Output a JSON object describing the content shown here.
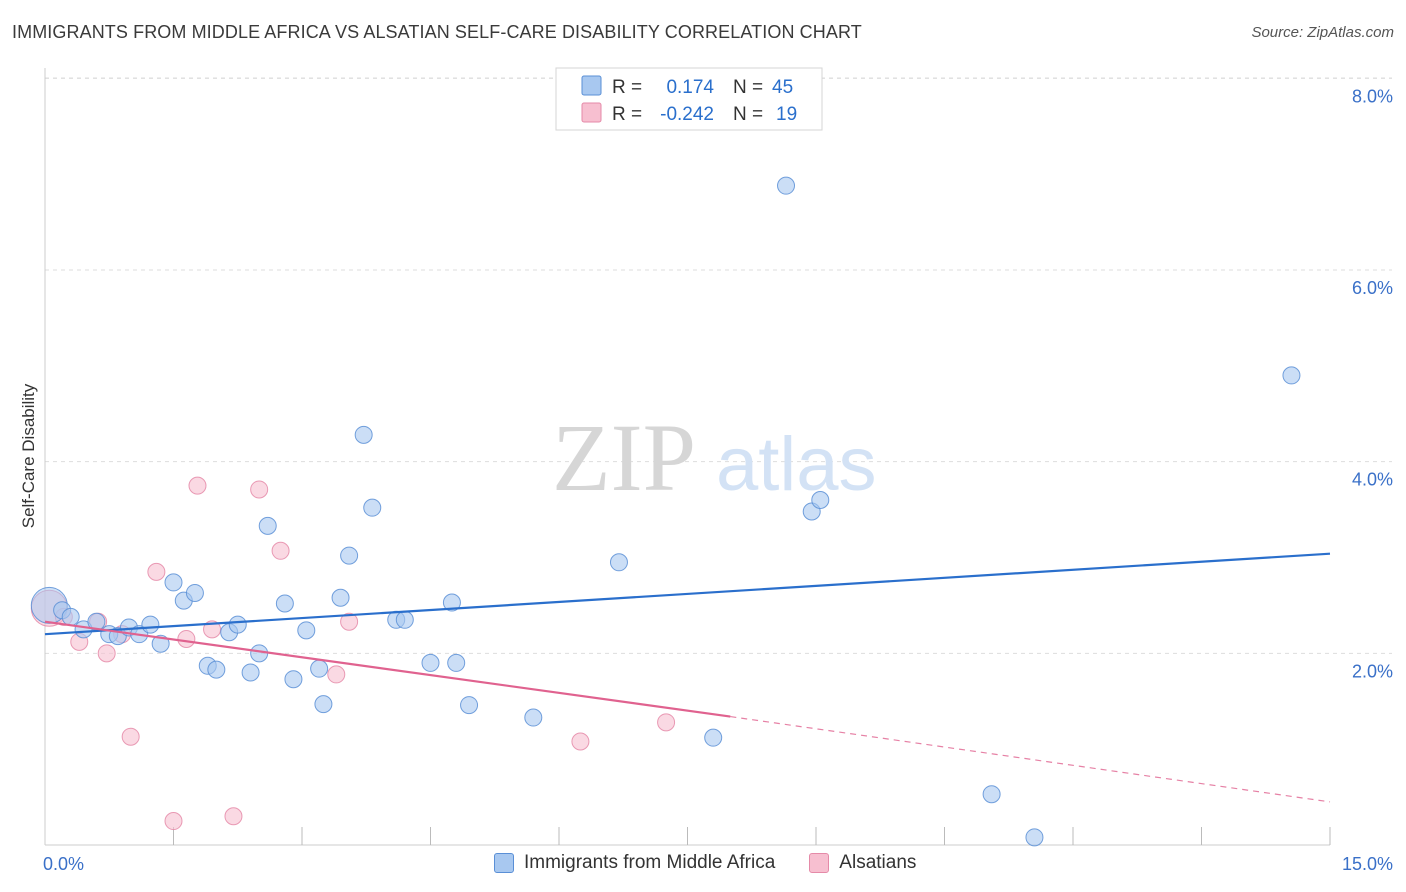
{
  "title": "IMMIGRANTS FROM MIDDLE AFRICA VS ALSATIAN SELF-CARE DISABILITY CORRELATION CHART",
  "source": "Source: ZipAtlas.com",
  "watermark": {
    "zip": "ZIP",
    "atlas": "atlas"
  },
  "colors": {
    "blue_fill": "#a8c8f0",
    "blue_stroke": "#5a8fd6",
    "blue_line": "#2a6fcc",
    "pink_fill": "#f7bfd0",
    "pink_stroke": "#e58aa8",
    "pink_line": "#e0628f",
    "axis_label": "#3a70c8",
    "grid": "#dddddd"
  },
  "legend": {
    "rows": [
      {
        "r_label": "R =",
        "r_value": "0.174",
        "n_label": "N =",
        "n_value": "45"
      },
      {
        "r_label": "R =",
        "r_value": "-0.242",
        "n_label": "N =",
        "n_value": "19"
      }
    ]
  },
  "bottom_legend": [
    {
      "label": "Immigrants from Middle Africa"
    },
    {
      "label": "Alsatians"
    }
  ],
  "chart_data": {
    "type": "scatter",
    "xlabel": "",
    "ylabel": "Self-Care Disability",
    "xlim": [
      0,
      15
    ],
    "ylim": [
      0,
      8.4
    ],
    "x_tick_labels": [
      "0.0%",
      "15.0%"
    ],
    "y_ticks": [
      2,
      4,
      6,
      8
    ],
    "y_tick_labels": [
      "2.0%",
      "4.0%",
      "6.0%",
      "8.0%"
    ],
    "grid": true,
    "legend_placement": "top-center",
    "series": [
      {
        "name": "Immigrants from Middle Africa",
        "color": "#a8c8f0",
        "r": 0.174,
        "n": 45,
        "trend": {
          "x": [
            0,
            15
          ],
          "y": [
            2.2,
            3.04
          ]
        },
        "points": [
          {
            "x": 0.05,
            "y": 2.5,
            "big": true
          },
          {
            "x": 0.2,
            "y": 2.45
          },
          {
            "x": 0.3,
            "y": 2.38
          },
          {
            "x": 0.45,
            "y": 2.25
          },
          {
            "x": 0.6,
            "y": 2.33
          },
          {
            "x": 0.75,
            "y": 2.2
          },
          {
            "x": 0.85,
            "y": 2.18
          },
          {
            "x": 0.98,
            "y": 2.27
          },
          {
            "x": 1.1,
            "y": 2.2
          },
          {
            "x": 1.23,
            "y": 2.3
          },
          {
            "x": 1.35,
            "y": 2.1
          },
          {
            "x": 1.5,
            "y": 2.74
          },
          {
            "x": 1.62,
            "y": 2.55
          },
          {
            "x": 1.75,
            "y": 2.63
          },
          {
            "x": 1.9,
            "y": 1.87
          },
          {
            "x": 2.0,
            "y": 1.83
          },
          {
            "x": 2.15,
            "y": 2.22
          },
          {
            "x": 2.25,
            "y": 2.3
          },
          {
            "x": 2.4,
            "y": 1.8
          },
          {
            "x": 2.5,
            "y": 2.0
          },
          {
            "x": 2.6,
            "y": 3.33
          },
          {
            "x": 2.8,
            "y": 2.52
          },
          {
            "x": 2.9,
            "y": 1.73
          },
          {
            "x": 3.05,
            "y": 2.24
          },
          {
            "x": 3.2,
            "y": 1.84
          },
          {
            "x": 3.25,
            "y": 1.47
          },
          {
            "x": 3.45,
            "y": 2.58
          },
          {
            "x": 3.55,
            "y": 3.02
          },
          {
            "x": 3.72,
            "y": 4.28
          },
          {
            "x": 3.82,
            "y": 3.52
          },
          {
            "x": 4.1,
            "y": 2.35
          },
          {
            "x": 4.2,
            "y": 2.35
          },
          {
            "x": 4.5,
            "y": 1.9
          },
          {
            "x": 4.75,
            "y": 2.53
          },
          {
            "x": 4.8,
            "y": 1.9
          },
          {
            "x": 4.95,
            "y": 1.46
          },
          {
            "x": 5.7,
            "y": 1.33
          },
          {
            "x": 6.7,
            "y": 2.95
          },
          {
            "x": 7.8,
            "y": 1.12
          },
          {
            "x": 8.65,
            "y": 6.88
          },
          {
            "x": 8.95,
            "y": 3.48
          },
          {
            "x": 9.05,
            "y": 3.6
          },
          {
            "x": 11.05,
            "y": 0.53
          },
          {
            "x": 11.55,
            "y": 0.08
          },
          {
            "x": 14.55,
            "y": 4.9
          }
        ]
      },
      {
        "name": "Alsatians",
        "color": "#f7bfd0",
        "r": -0.242,
        "n": 19,
        "trend": {
          "x": [
            0,
            8.0
          ],
          "y": [
            2.33,
            1.34
          ]
        },
        "trend_dashed": {
          "x": [
            8.0,
            15
          ],
          "y": [
            1.34,
            0.45
          ]
        },
        "points": [
          {
            "x": 0.05,
            "y": 2.47,
            "big": true
          },
          {
            "x": 0.22,
            "y": 2.38
          },
          {
            "x": 0.4,
            "y": 2.12
          },
          {
            "x": 0.62,
            "y": 2.33
          },
          {
            "x": 0.72,
            "y": 2.0
          },
          {
            "x": 0.9,
            "y": 2.2
          },
          {
            "x": 1.0,
            "y": 1.13
          },
          {
            "x": 1.3,
            "y": 2.85
          },
          {
            "x": 1.5,
            "y": 0.25
          },
          {
            "x": 1.65,
            "y": 2.15
          },
          {
            "x": 1.78,
            "y": 3.75
          },
          {
            "x": 1.95,
            "y": 2.25
          },
          {
            "x": 2.2,
            "y": 0.3
          },
          {
            "x": 2.5,
            "y": 3.71
          },
          {
            "x": 2.75,
            "y": 3.07
          },
          {
            "x": 3.4,
            "y": 1.78
          },
          {
            "x": 3.55,
            "y": 2.33
          },
          {
            "x": 6.25,
            "y": 1.08
          },
          {
            "x": 7.25,
            "y": 1.28
          }
        ]
      }
    ]
  }
}
